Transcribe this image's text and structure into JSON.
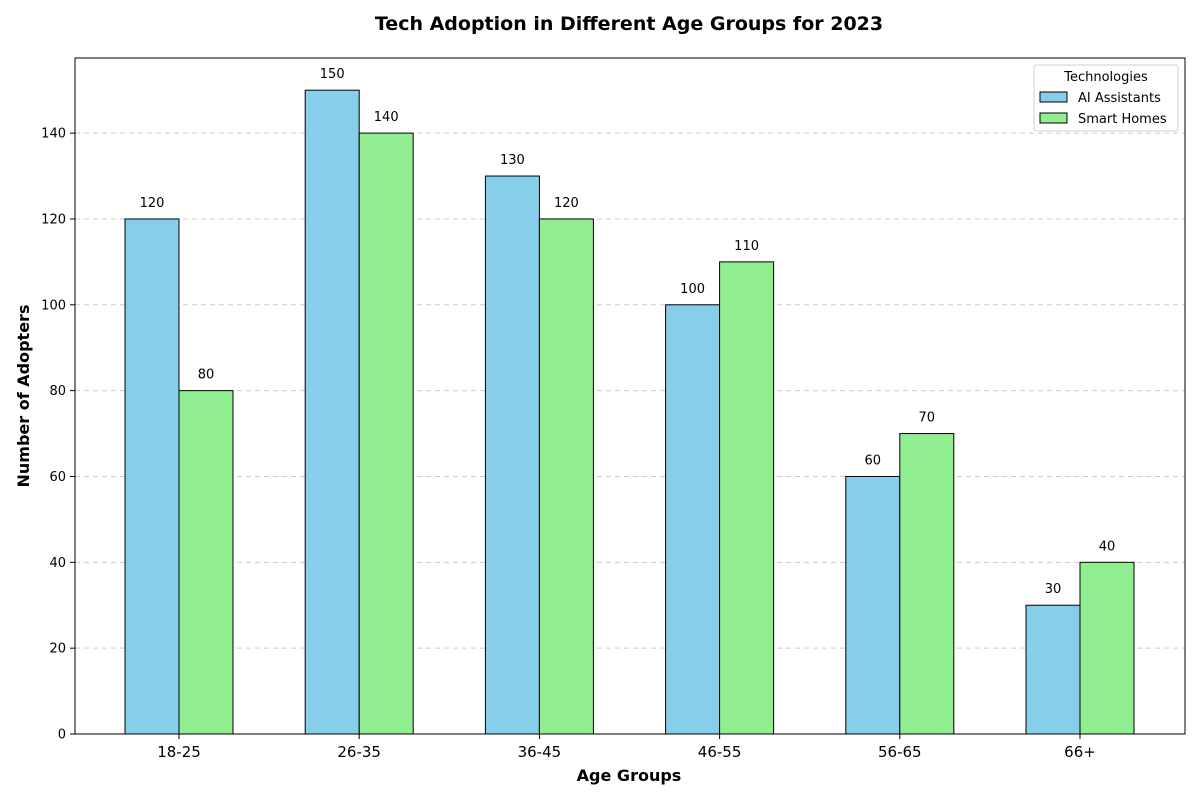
{
  "chart_data": {
    "type": "bar",
    "title": "Tech Adoption in Different Age Groups for 2023",
    "xlabel": "Age Groups",
    "ylabel": "Number of Adopters",
    "categories": [
      "18-25",
      "26-35",
      "36-45",
      "46-55",
      "56-65",
      "66+"
    ],
    "series": [
      {
        "name": "AI Assistants",
        "values": [
          120,
          150,
          130,
          100,
          60,
          30
        ],
        "color": "#87ceeb"
      },
      {
        "name": "Smart Homes",
        "values": [
          80,
          140,
          120,
          110,
          70,
          40
        ],
        "color": "#90ee90"
      }
    ],
    "ylim": [
      0,
      157.5
    ],
    "yticks": [
      0,
      20,
      40,
      60,
      80,
      100,
      120,
      140
    ],
    "grid": "y-dashed",
    "legend": {
      "title": "Technologies",
      "placement": "top-right"
    },
    "data_labels": true,
    "bar_edge_color": "#000000"
  }
}
